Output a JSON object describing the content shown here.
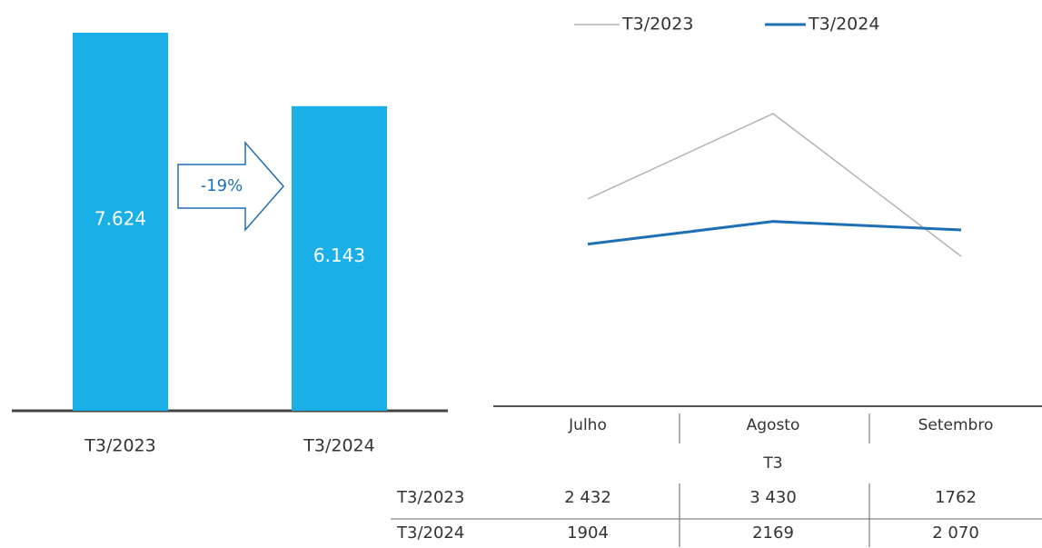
{
  "chart_data": [
    {
      "type": "bar",
      "categories": [
        "T3/2023",
        "T3/2024"
      ],
      "values": [
        7624,
        6143
      ],
      "value_labels": [
        "7.624",
        "6.143"
      ],
      "color": "#1aafe6",
      "annotation": "-19%"
    },
    {
      "type": "line",
      "categories": [
        "Julho",
        "Agosto",
        "Setembro"
      ],
      "group_label": "T3",
      "series": [
        {
          "name": "T3/2023",
          "color": "#b3b3b3",
          "values": [
            2432,
            3430,
            1762
          ],
          "value_labels": [
            "2 432",
            "3 430",
            "1762"
          ]
        },
        {
          "name": "T3/2024",
          "color": "#1f6fb5",
          "values": [
            1904,
            2169,
            2070
          ],
          "value_labels": [
            "1904",
            "2169",
            "2 070"
          ]
        }
      ]
    }
  ]
}
